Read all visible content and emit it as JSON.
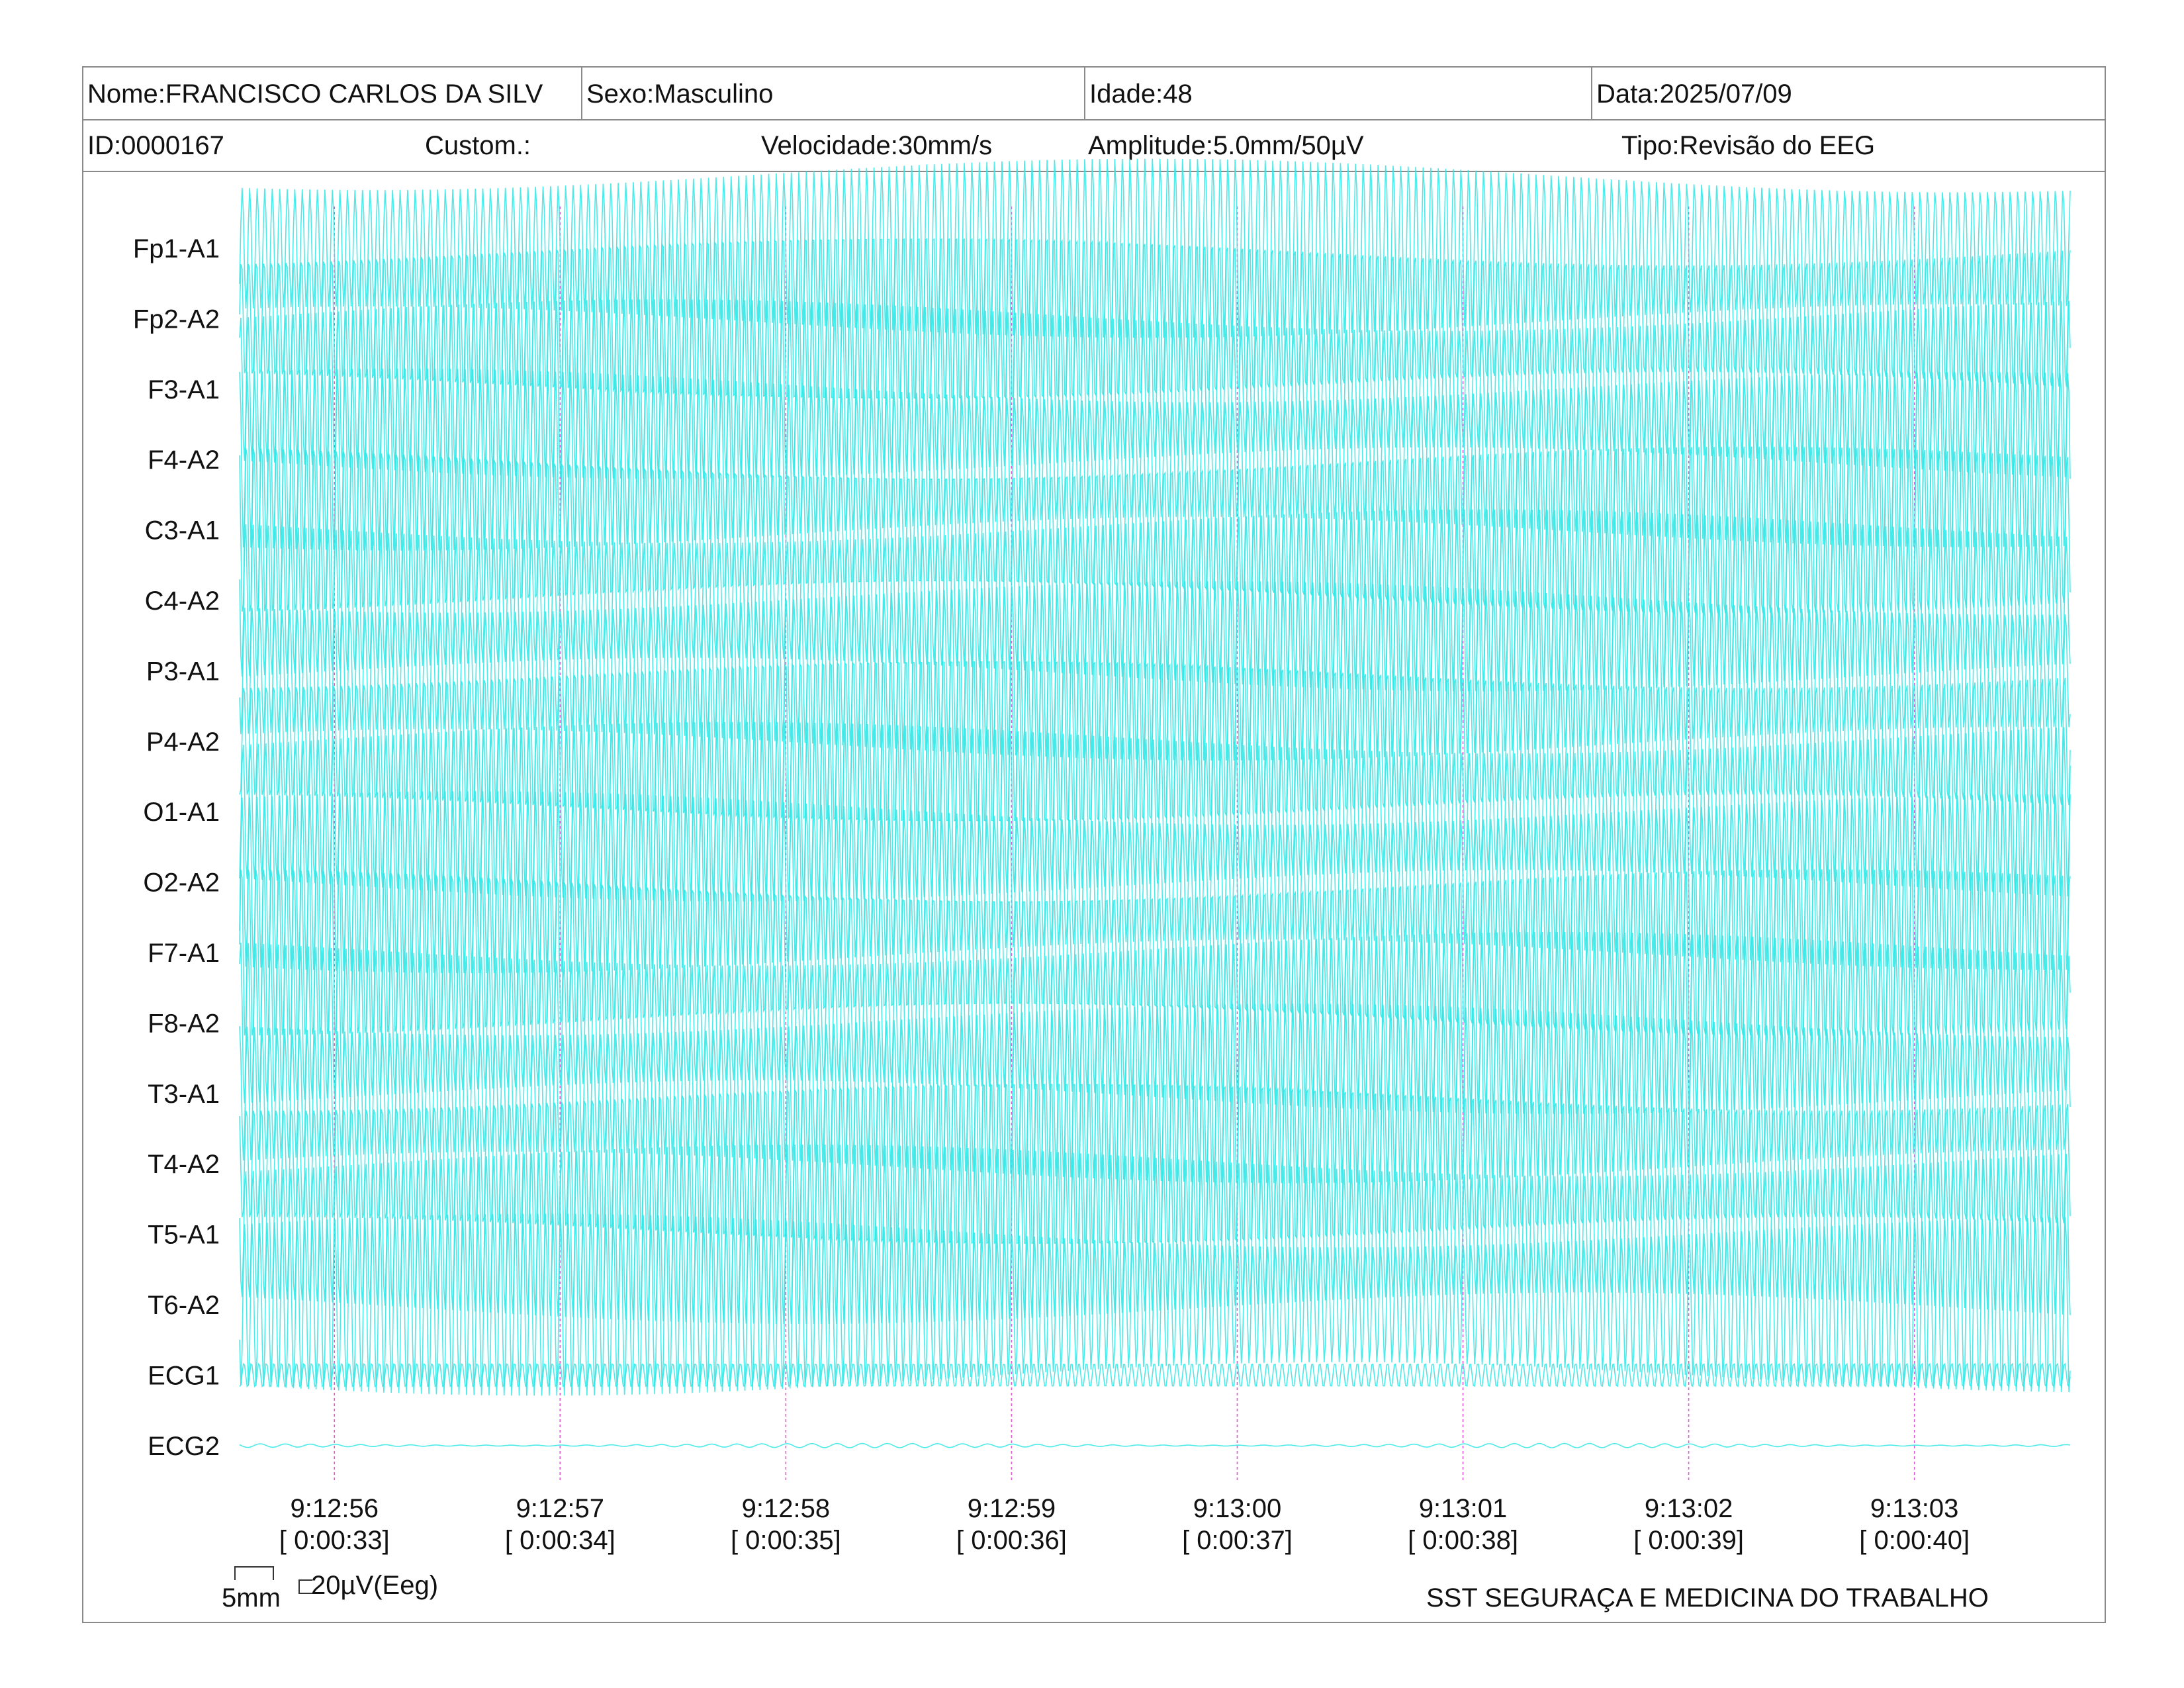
{
  "header": {
    "nome": "Nome:FRANCISCO CARLOS DA SILV",
    "sexo": "Sexo:Masculino",
    "idade": "Idade:48",
    "data": "Data:2025/07/09",
    "id": "ID:0000167",
    "custom": "Custom.:",
    "velocidade": "Velocidade:30mm/s",
    "amplitude": "Amplitude:5.0mm/50µV",
    "tipo": "Tipo:Revisão do EEG"
  },
  "footer": {
    "scale_time": "5mm",
    "scale_amp": "20µV(Eeg)",
    "company": "SST SEGURAÇA E MEDICINA DO TRABALHO"
  },
  "colors": {
    "trace": "#2ee6e6",
    "time_marker": "#e05ad0",
    "border": "#8a8a8a"
  },
  "chart_data": {
    "type": "line",
    "title": "",
    "xlabel": "",
    "ylabel": "",
    "grid": false,
    "legend": "none",
    "channels": [
      "Fp1-A1",
      "Fp2-A2",
      "F3-A1",
      "F4-A2",
      "C3-A1",
      "C4-A2",
      "P3-A1",
      "P4-A2",
      "O1-A1",
      "O2-A2",
      "F7-A1",
      "F8-A2",
      "T3-A1",
      "T4-A2",
      "T5-A1",
      "T6-A2",
      "ECG1",
      "ECG2"
    ],
    "time_ticks": [
      {
        "clock": "9:12:56",
        "elapsed": "[ 0:00:33]"
      },
      {
        "clock": "9:12:57",
        "elapsed": "[ 0:00:34]"
      },
      {
        "clock": "9:12:58",
        "elapsed": "[ 0:00:35]"
      },
      {
        "clock": "9:12:59",
        "elapsed": "[ 0:00:36]"
      },
      {
        "clock": "9:13:00",
        "elapsed": "[ 0:00:37]"
      },
      {
        "clock": "9:13:01",
        "elapsed": "[ 0:00:38]"
      },
      {
        "clock": "9:13:02",
        "elapsed": "[ 0:00:39]"
      },
      {
        "clock": "9:13:03",
        "elapsed": "[ 0:00:40]"
      }
    ],
    "x_range_seconds": [
      32.58,
      40.69
    ],
    "waveform": {
      "eeg_frequency_hz": 30,
      "eeg_relative_amplitude": 2.6,
      "ecg1_relative_amplitude": 0.35,
      "ecg2_relative_amplitude": 0.06
    }
  }
}
